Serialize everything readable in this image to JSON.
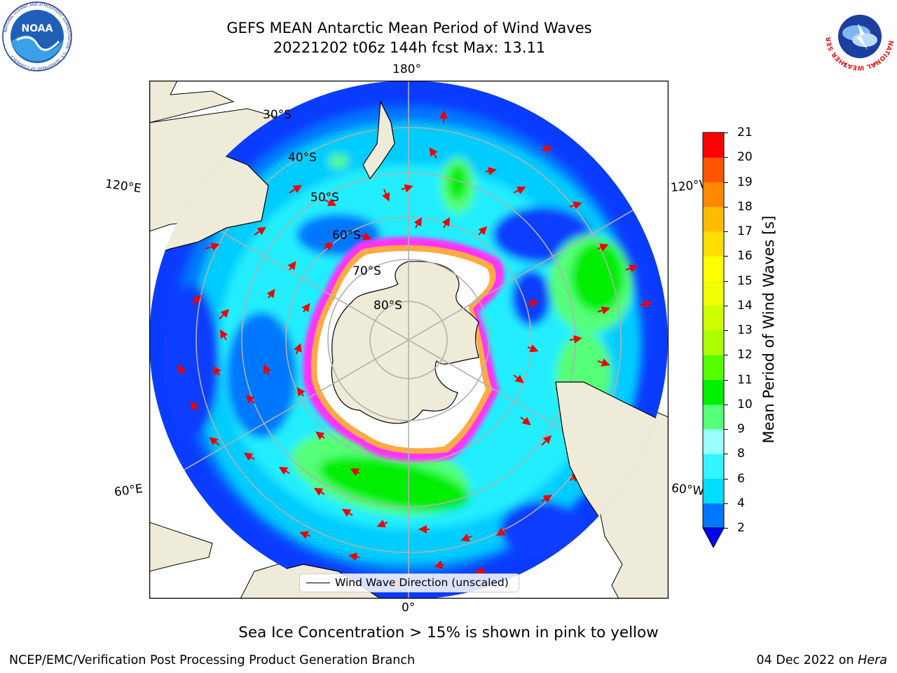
{
  "header": {
    "title_line1": "GEFS MEAN Antarctic Mean Period of Wind Waves",
    "title_line2": "20221202 t06z 144h fcst   Max: 13.11"
  },
  "logos": {
    "left": {
      "name": "noaa-logo",
      "text": "NOAA",
      "ring_text": "NATIONAL OCEANIC AND ATMOSPHERIC ADMINISTRATION · U.S. DEPARTMENT OF COMMERCE"
    },
    "right": {
      "name": "nws-logo",
      "ring_text": "NATIONAL WEATHER SERVICE"
    }
  },
  "map": {
    "projection": "south-polar-stereographic",
    "lon_labels": {
      "top": "180°",
      "bottom": "0°",
      "left_upper": "120°E",
      "left_lower": "60°E",
      "right_upper": "120°W",
      "right_lower": "60°W"
    },
    "lat_labels": [
      "30°S",
      "40°S",
      "50°S",
      "60°S",
      "70°S",
      "80°S"
    ],
    "legend_label": "Wind Wave Direction (unscaled)",
    "colors": {
      "land": "#efebd9",
      "ice_free": "#ffffff",
      "ice_edge_pink": "#ff33ff",
      "ice_edge_orange": "#ffaa44",
      "grid": "#b0b0b0"
    }
  },
  "colorbar": {
    "title": "Mean Period of Wind Waves [s]",
    "ticks": [
      "2",
      "4",
      "6",
      "8",
      "9",
      "10",
      "11",
      "12",
      "13",
      "14",
      "15",
      "16",
      "17",
      "18",
      "19",
      "20",
      "21"
    ],
    "colors": [
      "#0077ff",
      "#00ddff",
      "#33f4ff",
      "#99ffff",
      "#55ff77",
      "#00ee00",
      "#55ff00",
      "#aaff00",
      "#ccff00",
      "#eeff00",
      "#ffff00",
      "#ffdd00",
      "#ffbb00",
      "#ff8800",
      "#ff5500",
      "#ff0000"
    ],
    "under_color": "#0000ff"
  },
  "notes": {
    "sea_ice": "Sea Ice Concentration > 15% is shown in pink to yellow"
  },
  "footer": {
    "left": "NCEP/EMC/Verification Post Processing Product Generation Branch",
    "right_date": "04 Dec 2022 on",
    "right_host": "Hera"
  }
}
